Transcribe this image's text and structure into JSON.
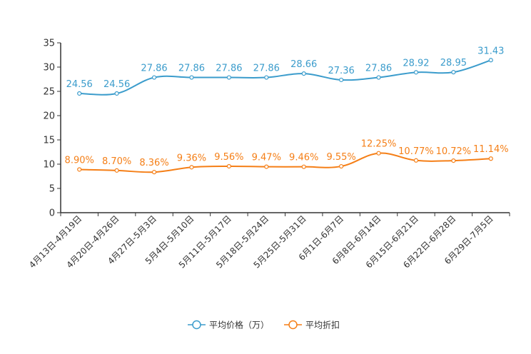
{
  "chart_data": {
    "type": "line",
    "categories": [
      "4月13日-4月19日",
      "4月20日-4月26日",
      "4月27日-5月3日",
      "5月4日-5月10日",
      "5月11日-5月17日",
      "5月18日-5月24日",
      "5月25日-5月31日",
      "6月1日-6月7日",
      "6月8日-6月14日",
      "6月15日-6月21日",
      "6月22日-6月28日",
      "6月29日-7月5日"
    ],
    "ylim": [
      0,
      35
    ],
    "yticks": [
      0,
      5,
      10,
      15,
      20,
      25,
      30,
      35
    ],
    "series": [
      {
        "name": "平均价格（万）",
        "color": "#3b9ccc",
        "values": [
          24.56,
          24.56,
          27.86,
          27.86,
          27.86,
          27.86,
          28.66,
          27.36,
          27.86,
          28.92,
          28.95,
          31.43
        ],
        "labels": [
          "24.56",
          "24.56",
          "27.86",
          "27.86",
          "27.86",
          "27.86",
          "28.66",
          "27.36",
          "27.86",
          "28.92",
          "28.95",
          "31.43"
        ]
      },
      {
        "name": "平均折扣",
        "color": "#f57f17",
        "values": [
          8.9,
          8.7,
          8.36,
          9.36,
          9.56,
          9.47,
          9.46,
          9.55,
          12.25,
          10.77,
          10.72,
          11.14
        ],
        "labels": [
          "8.90%",
          "8.70%",
          "8.36%",
          "9.36%",
          "9.56%",
          "9.47%",
          "9.46%",
          "9.55%",
          "12.25%",
          "10.77%",
          "10.72%",
          "11.14%"
        ]
      }
    ],
    "legend_position": "bottom-center"
  }
}
